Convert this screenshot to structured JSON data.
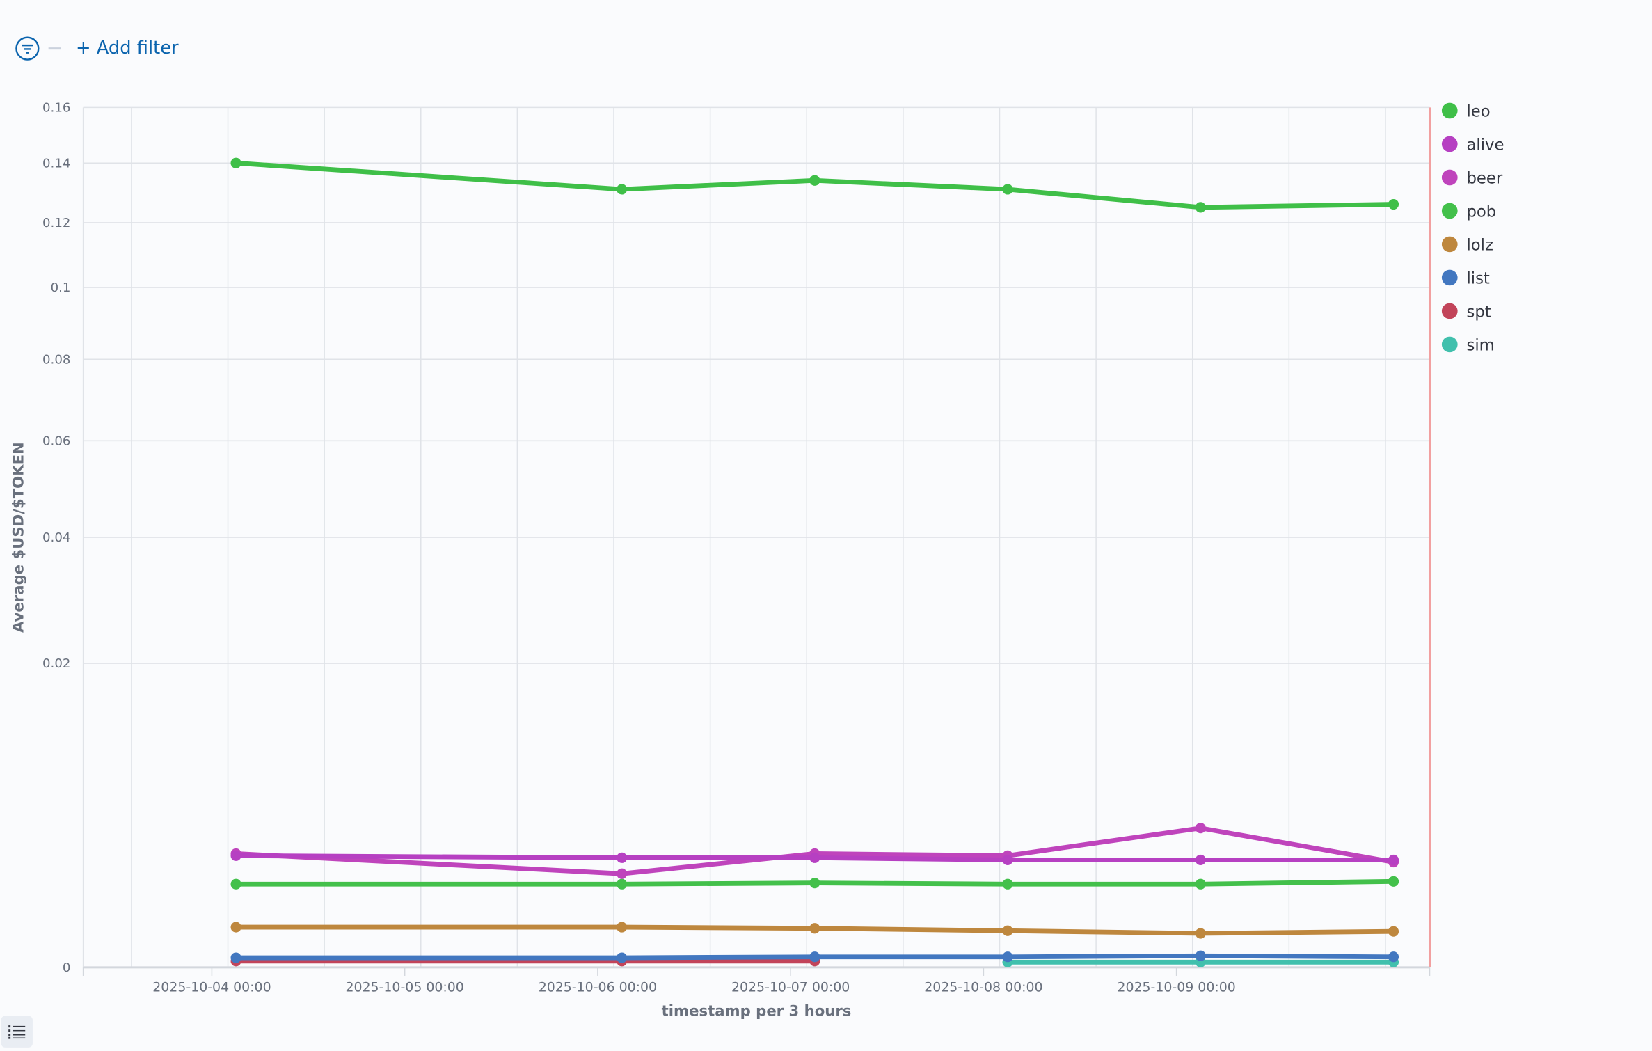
{
  "filter_bar": {
    "add_filter_label": "+ Add filter",
    "filter_icon": "filter-icon"
  },
  "bottom_button_icon": "list-icon",
  "chart_data": {
    "type": "line",
    "title": "",
    "xlabel": "timestamp per 3 hours",
    "ylabel": "Average $USD/$TOKEN",
    "y_scale": "sqrt",
    "ylim": [
      0,
      0.16
    ],
    "y_ticks": [
      0,
      0.02,
      0.04,
      0.06,
      0.08,
      0.1,
      0.12,
      0.14,
      0.16
    ],
    "y_tick_labels": [
      "0",
      "0.02",
      "0.04",
      "0.06",
      "0.08",
      "0.1",
      "0.12",
      "0.14",
      "0.16"
    ],
    "xlim": [
      "2025-10-03 08:00",
      "2025-10-10 07:30"
    ],
    "x_tick_labels": [
      "2025-10-04 00:00",
      "2025-10-05 00:00",
      "2025-10-06 00:00",
      "2025-10-07 00:00",
      "2025-10-08 00:00",
      "2025-10-09 00:00"
    ],
    "grid": true,
    "legend_position": "right",
    "x": [
      "2025-10-04 03:00",
      "2025-10-06 03:00",
      "2025-10-07 03:00",
      "2025-10-08 03:00",
      "2025-10-09 03:00",
      "2025-10-10 03:00"
    ],
    "series": [
      {
        "name": "leo",
        "color": "#3FBF48",
        "values": [
          0.14,
          0.131,
          0.134,
          0.131,
          0.125,
          0.126
        ]
      },
      {
        "name": "alive",
        "color": "#B640C2",
        "values": [
          0.0027,
          0.0026,
          0.0026,
          0.0025,
          0.0025,
          0.0025
        ]
      },
      {
        "name": "beer",
        "color": "#BF44BC",
        "values": [
          0.0028,
          0.0019,
          0.0028,
          0.0027,
          0.0042,
          0.0024
        ]
      },
      {
        "name": "pob",
        "color": "#43C04B",
        "values": [
          0.0015,
          0.0015,
          0.00154,
          0.0015,
          0.0015,
          0.0016
        ]
      },
      {
        "name": "lolz",
        "color": "#BE873E",
        "values": [
          0.00035,
          0.00035,
          0.00033,
          0.00029,
          0.00025,
          0.00028
        ]
      },
      {
        "name": "list",
        "color": "#4277C0",
        "values": [
          2e-05,
          2e-05,
          2.4e-05,
          2.4e-05,
          2.9e-05,
          2.4e-05
        ]
      },
      {
        "name": "spt",
        "color": "#C2445A",
        "values": [
          8.6e-06,
          8.6e-06,
          8.6e-06,
          null,
          null,
          null
        ]
      },
      {
        "name": "sim",
        "color": "#41C0AD",
        "values": [
          null,
          null,
          null,
          6e-06,
          6e-06,
          6e-06
        ]
      }
    ]
  }
}
